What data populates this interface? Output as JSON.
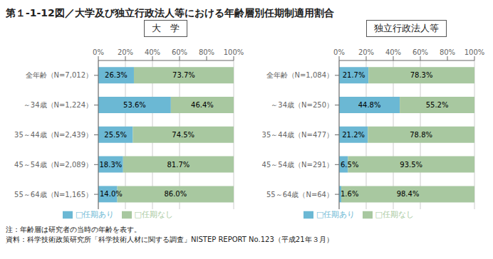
{
  "title": "第１-1-12図／大学及び独立行政法人等における年齢層別任期制適用割合",
  "annotations": [
    "注：年齢層は研究者の当時の年齢を表す。",
    "資料：科学技術政策研究所「科学技術人材に関する調査」NISTEP REPORT No.123（平成21年３月）"
  ],
  "chart_data": [
    {
      "type": "bar",
      "title": "大　学",
      "orientation": "horizontal",
      "stacked": true,
      "data_labels": true,
      "grid": true,
      "legend": "bottom",
      "categories": [
        "全年齢（N=7,012）",
        "～34歳（N=1,224）",
        "35～44歳（N=2,439）",
        "45～54歳（N=2,089）",
        "55～64歳（N=1,165）"
      ],
      "series": [
        {
          "name": "□任期あり",
          "color": "#6bb8d4",
          "values": [
            26.3,
            53.6,
            25.5,
            18.3,
            14.0
          ],
          "value_labels": [
            "26.3%",
            "53.6%",
            "25.5%",
            "18.3%",
            "14.0%"
          ]
        },
        {
          "name": "□任期なし",
          "color": "#a8c8a0",
          "values": [
            73.7,
            46.4,
            74.5,
            81.7,
            86.0
          ],
          "value_labels": [
            "73.7%",
            "46.4%",
            "74.5%",
            "81.7%",
            "86.0%"
          ]
        }
      ],
      "xlim": [
        0,
        100
      ],
      "xticks": [
        {
          "value": 0,
          "label": "0%"
        },
        {
          "value": 20,
          "label": "20%"
        },
        {
          "value": 40,
          "label": "40%"
        },
        {
          "value": 60,
          "label": "60%"
        },
        {
          "value": 80,
          "label": "80%"
        },
        {
          "value": 100,
          "label": "100%"
        }
      ]
    },
    {
      "type": "bar",
      "title": "独立行政法人等",
      "orientation": "horizontal",
      "stacked": true,
      "data_labels": true,
      "grid": true,
      "legend": "bottom",
      "categories": [
        "全年齢（N=1,084）",
        "～34歳（N=250）",
        "35～44歳（N=477）",
        "45～54歳（N=291）",
        "55～64歳（N=64）"
      ],
      "series": [
        {
          "name": "□任期あり",
          "color": "#6bb8d4",
          "values": [
            21.7,
            44.8,
            21.2,
            6.5,
            1.6
          ],
          "value_labels": [
            "21.7%",
            "44.8%",
            "21.2%",
            "6.5%",
            "1.6%"
          ]
        },
        {
          "name": "□任期なし",
          "color": "#a8c8a0",
          "values": [
            78.3,
            55.2,
            78.8,
            93.5,
            98.4
          ],
          "value_labels": [
            "78.3%",
            "55.2%",
            "78.8%",
            "93.5%",
            "98.4%"
          ]
        }
      ],
      "xlim": [
        0,
        100
      ],
      "xticks": [
        {
          "value": 0,
          "label": "0%"
        },
        {
          "value": 20,
          "label": "20%"
        },
        {
          "value": 40,
          "label": "40%"
        },
        {
          "value": 60,
          "label": "60%"
        },
        {
          "value": 80,
          "label": "80%"
        },
        {
          "value": 100,
          "label": "100%"
        }
      ]
    }
  ]
}
